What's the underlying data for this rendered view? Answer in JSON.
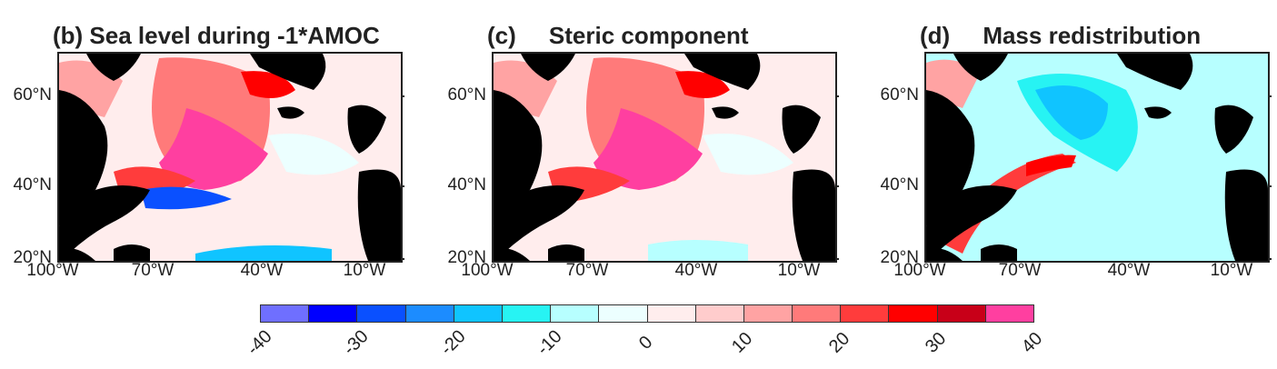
{
  "panels": [
    {
      "key": "b",
      "title": "(b) Sea level during -1*AMOC",
      "variant": "total"
    },
    {
      "key": "c",
      "title": "(c)     Steric component",
      "variant": "steric"
    },
    {
      "key": "d",
      "title": "(d)     Mass redistribution",
      "variant": "mass"
    }
  ],
  "axes": {
    "lat_ticks": [
      "60°N",
      "40°N",
      "20°N"
    ],
    "lon_ticks": [
      "100°W",
      "70°W",
      "40°W",
      "10°W"
    ]
  },
  "colorbar": {
    "ticks": [
      "-40",
      "-30",
      "-20",
      "-10",
      "0",
      "10",
      "20",
      "30",
      "40"
    ],
    "colors": [
      "#6f6fff",
      "#0000ff",
      "#0a50ff",
      "#1c8cff",
      "#10c4ff",
      "#27f3f3",
      "#b7ffff",
      "#ecffff",
      "#ffeded",
      "#ffcccc",
      "#ffa3a3",
      "#ff7a7a",
      "#ff3c3c",
      "#ff0000",
      "#c80018",
      "#ff3fa0"
    ]
  },
  "land_color": "#000000"
}
